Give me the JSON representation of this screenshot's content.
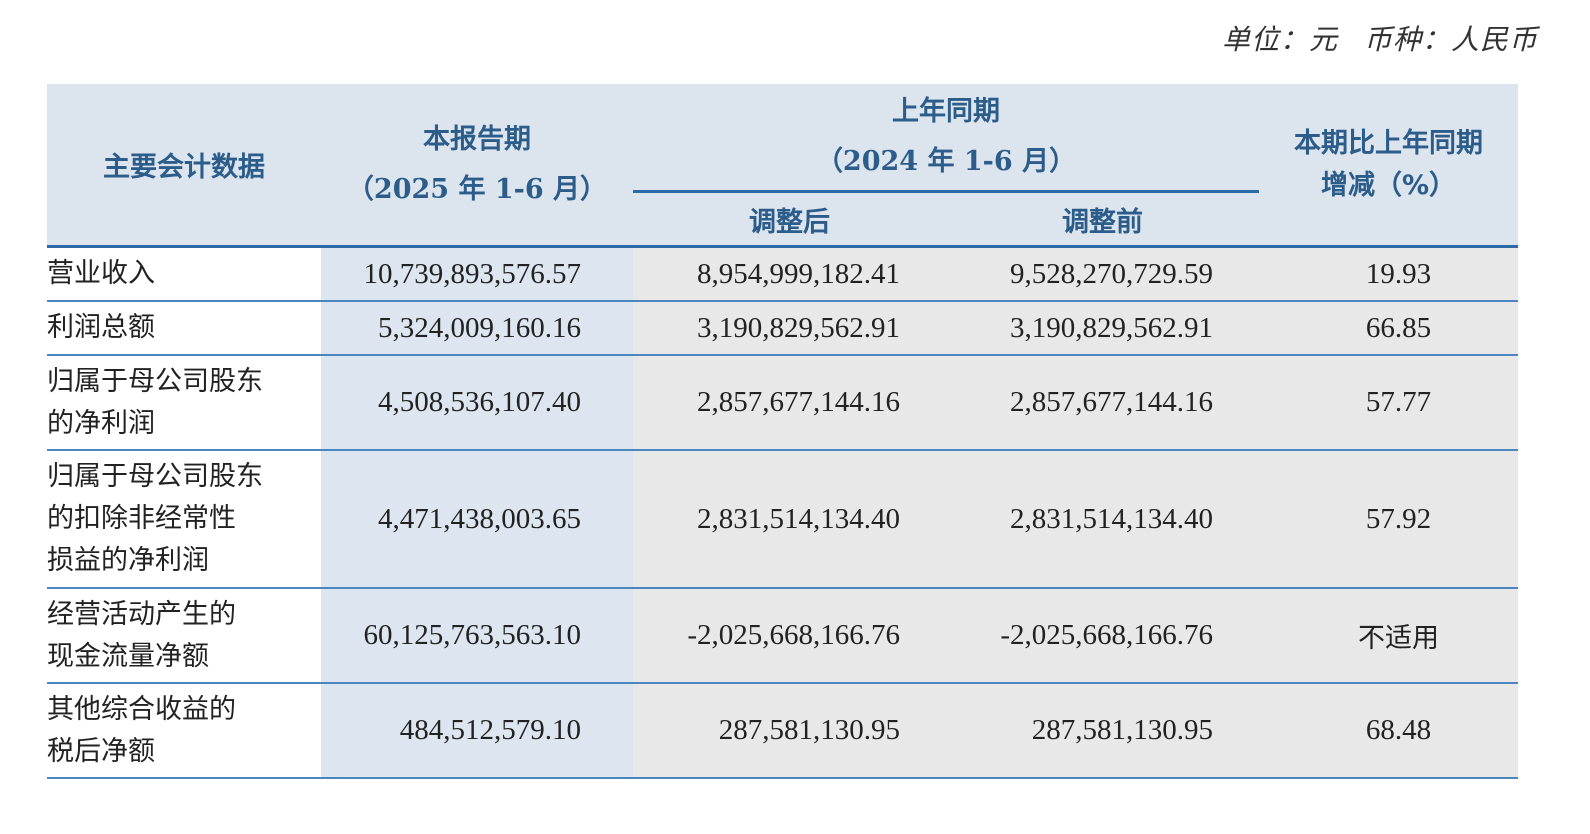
{
  "unit_note": {
    "unit": "单位：元",
    "currency": "币种：人民币"
  },
  "table": {
    "headers": {
      "item": "主要会计数据",
      "current_period": "本报告期",
      "current_period_range": "（2025 年 1-6 月）",
      "prior_period": "上年同期",
      "prior_period_range": "（2024 年 1-6 月）",
      "adjusted_after": "调整后",
      "adjusted_before": "调整前",
      "change_line1": "本期比上年同期",
      "change_line2": "增减（%）"
    },
    "rows": [
      {
        "label_lines": [
          "营业收入"
        ],
        "current": "10,739,893,576.57",
        "prior_adjusted": "8,954,999,182.41",
        "prior_original": "9,528,270,729.59",
        "change": "19.93"
      },
      {
        "label_lines": [
          "利润总额"
        ],
        "current": "5,324,009,160.16",
        "prior_adjusted": "3,190,829,562.91",
        "prior_original": "3,190,829,562.91",
        "change": "66.85"
      },
      {
        "label_lines": [
          "归属于母公司股东",
          "的净利润"
        ],
        "current": "4,508,536,107.40",
        "prior_adjusted": "2,857,677,144.16",
        "prior_original": "2,857,677,144.16",
        "change": "57.77"
      },
      {
        "label_lines": [
          "归属于母公司股东",
          "的扣除非经常性",
          "损益的净利润"
        ],
        "current": "4,471,438,003.65",
        "prior_adjusted": "2,831,514,134.40",
        "prior_original": "2,831,514,134.40",
        "change": "57.92"
      },
      {
        "label_lines": [
          "经营活动产生的",
          "现金流量净额"
        ],
        "current": "60,125,763,563.10",
        "prior_adjusted": "-2,025,668,166.76",
        "prior_original": "-2,025,668,166.76",
        "change": "不适用"
      },
      {
        "label_lines": [
          "其他综合收益的",
          "税后净额"
        ],
        "current": "484,512,579.10",
        "prior_adjusted": "287,581,130.95",
        "prior_original": "287,581,130.95",
        "change": "68.48"
      }
    ]
  },
  "colors": {
    "header_bg": "#dce4ee",
    "header_text": "#2c5d8a",
    "rule": "#4a86c0",
    "current_col_bg": "#dde6f0",
    "prior_col_bg": "#e8e8e8"
  }
}
